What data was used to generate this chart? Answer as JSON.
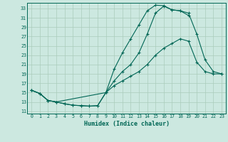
{
  "xlabel": "Humidex (Indice chaleur)",
  "x_ticks": [
    0,
    1,
    2,
    3,
    4,
    5,
    6,
    7,
    8,
    9,
    10,
    11,
    12,
    13,
    14,
    15,
    16,
    17,
    18,
    19,
    20,
    21,
    22,
    23
  ],
  "y_ticks": [
    11,
    13,
    15,
    17,
    19,
    21,
    23,
    25,
    27,
    29,
    31,
    33
  ],
  "xlim": [
    -0.5,
    23.5
  ],
  "ylim": [
    10.5,
    34.2
  ],
  "bg_color": "#cce8e0",
  "grid_color": "#aaccbb",
  "line_color": "#006655",
  "line1_x": [
    0,
    1,
    2,
    3,
    4,
    5,
    6,
    7,
    8,
    9,
    10,
    11,
    12,
    13,
    14,
    15,
    16,
    17,
    18,
    19,
    20,
    21,
    22,
    23
  ],
  "line1_y": [
    15.5,
    14.8,
    13.3,
    13.0,
    12.6,
    12.3,
    12.2,
    12.1,
    12.2,
    15.0,
    16.5,
    17.5,
    18.5,
    19.5,
    21.0,
    23.0,
    24.5,
    25.5,
    26.5,
    26.0,
    21.5,
    19.5,
    19.0,
    19.0
  ],
  "line2_x": [
    0,
    1,
    2,
    3,
    4,
    5,
    6,
    7,
    8,
    9,
    10,
    11,
    12,
    13,
    14,
    15,
    16,
    17,
    18,
    19
  ],
  "line2_y": [
    15.5,
    14.8,
    13.3,
    13.0,
    12.6,
    12.3,
    12.2,
    12.1,
    12.2,
    15.0,
    20.0,
    23.5,
    26.5,
    29.5,
    32.5,
    33.7,
    33.6,
    32.7,
    32.5,
    31.5
  ],
  "line3_x": [
    0,
    1,
    2,
    3,
    9,
    10,
    11,
    12,
    13,
    14,
    15,
    16,
    17,
    18,
    19,
    20,
    21,
    22,
    23
  ],
  "line3_y": [
    15.5,
    14.8,
    13.3,
    13.0,
    15.0,
    17.5,
    19.5,
    21.0,
    23.5,
    27.5,
    32.0,
    33.5,
    32.7,
    32.5,
    32.0,
    27.5,
    22.0,
    19.5,
    19.0
  ]
}
